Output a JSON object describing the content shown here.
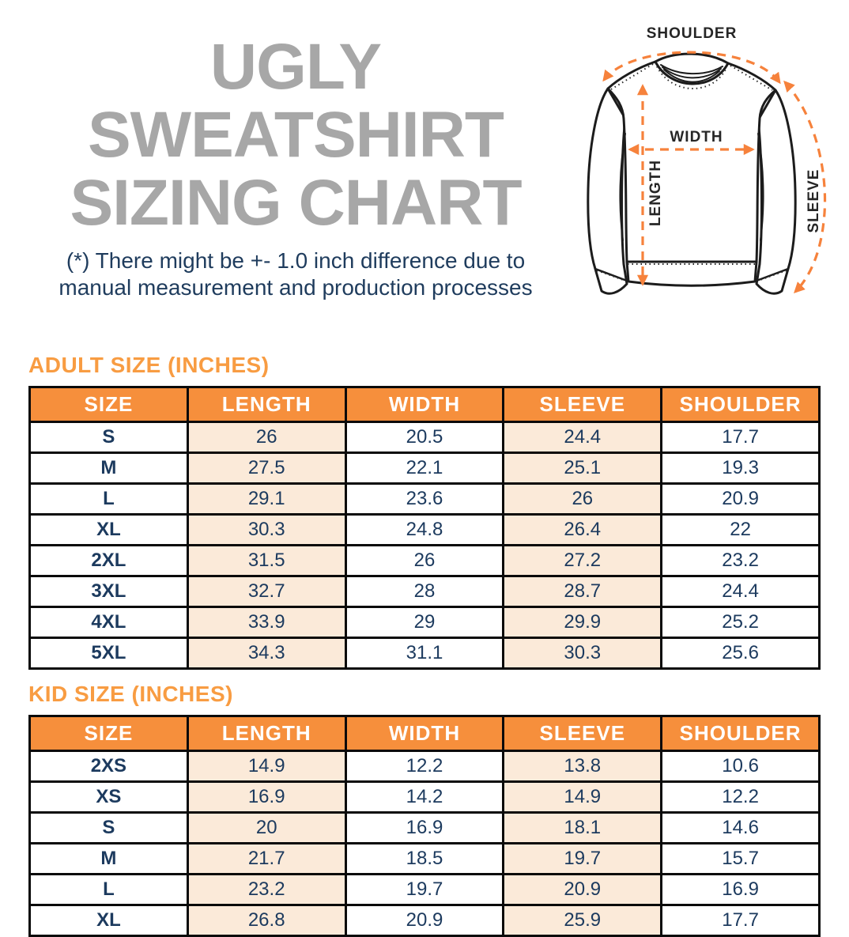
{
  "title": {
    "line1": "UGLY SWEATSHIRT",
    "line2": "SIZING CHART"
  },
  "disclaimer": {
    "line1": "(*) There might be +- 1.0 inch difference due to",
    "line2": "manual measurement and production processes"
  },
  "diagram": {
    "labels": {
      "shoulder": "SHOULDER",
      "width": "WIDTH",
      "length": "LENGTH",
      "sleeve": "SLEEVE"
    }
  },
  "adult": {
    "heading": "ADULT SIZE (INCHES)",
    "columns": [
      "SIZE",
      "LENGTH",
      "WIDTH",
      "SLEEVE",
      "SHOULDER"
    ],
    "rows": [
      [
        "S",
        "26",
        "20.5",
        "24.4",
        "17.7"
      ],
      [
        "M",
        "27.5",
        "22.1",
        "25.1",
        "19.3"
      ],
      [
        "L",
        "29.1",
        "23.6",
        "26",
        "20.9"
      ],
      [
        "XL",
        "30.3",
        "24.8",
        "26.4",
        "22"
      ],
      [
        "2XL",
        "31.5",
        "26",
        "27.2",
        "23.2"
      ],
      [
        "3XL",
        "32.7",
        "28",
        "28.7",
        "24.4"
      ],
      [
        "4XL",
        "33.9",
        "29",
        "29.9",
        "25.2"
      ],
      [
        "5XL",
        "34.3",
        "31.1",
        "30.3",
        "25.6"
      ]
    ]
  },
  "kid": {
    "heading": "KID SIZE (INCHES)",
    "columns": [
      "SIZE",
      "LENGTH",
      "WIDTH",
      "SLEEVE",
      "SHOULDER"
    ],
    "rows": [
      [
        "2XS",
        "14.9",
        "12.2",
        "13.8",
        "10.6"
      ],
      [
        "XS",
        "16.9",
        "14.2",
        "14.9",
        "12.2"
      ],
      [
        "S",
        "20",
        "16.9",
        "18.1",
        "14.6"
      ],
      [
        "M",
        "21.7",
        "18.5",
        "19.7",
        "15.7"
      ],
      [
        "L",
        "23.2",
        "19.7",
        "20.9",
        "16.9"
      ],
      [
        "XL",
        "26.8",
        "20.9",
        "25.9",
        "17.7"
      ]
    ]
  },
  "colors": {
    "header_orange": "#F68F3C",
    "heading_orange": "#F89C42",
    "arrow_orange": "#F6823C",
    "peach_cell": "#FBEAD9",
    "navy_text": "#1C3A5E",
    "title_gray": "#A7A7A7",
    "border_black": "#0A0A0A"
  }
}
